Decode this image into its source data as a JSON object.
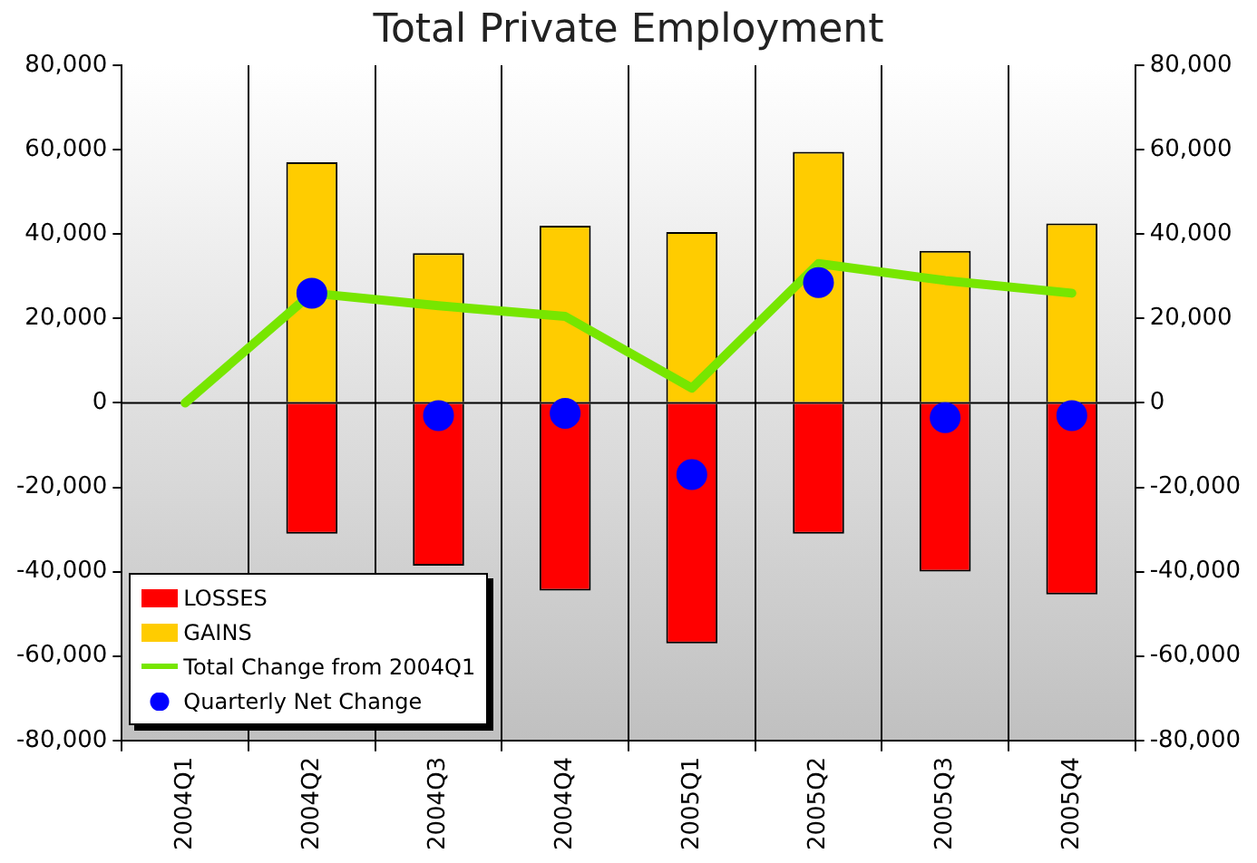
{
  "chart_data": {
    "type": "bar",
    "title": "Total Private Employment",
    "stacked": true,
    "categories": [
      "2004Q1",
      "2004Q2",
      "2004Q3",
      "2004Q4",
      "2005Q1",
      "2005Q2",
      "2005Q3",
      "2005Q4"
    ],
    "series": [
      {
        "name": "LOSSES",
        "color": "#ff0000",
        "values": [
          null,
          -31000,
          -38600,
          -44500,
          -57000,
          -31000,
          -40000,
          -45400
        ]
      },
      {
        "name": "GAINS",
        "color": "#ffcc00",
        "values": [
          null,
          57000,
          35500,
          42000,
          40500,
          59500,
          36000,
          42500
        ]
      },
      {
        "name": "Total Change from 2004Q1",
        "type": "line",
        "color": "#77e600",
        "values": [
          0,
          26000,
          23000,
          20500,
          3500,
          33000,
          29000,
          26000
        ]
      },
      {
        "name": "Quarterly Net Change",
        "type": "scatter",
        "color": "#0000ff",
        "marker": "circle",
        "x": [
          "2004Q2",
          "2004Q3",
          "2004Q4",
          "2005Q1",
          "2005Q2",
          "2005Q3",
          "2005Q4"
        ],
        "values": [
          26000,
          -3000,
          -2500,
          -17000,
          28500,
          -3500,
          -3000
        ]
      }
    ],
    "ylim": [
      -80000,
      80000
    ],
    "yticks": [
      {
        "value": -80000,
        "label": "-80,000"
      },
      {
        "value": -60000,
        "label": "-60,000"
      },
      {
        "value": -40000,
        "label": "-40,000"
      },
      {
        "value": -20000,
        "label": "-20,000"
      },
      0,
      {
        "value": 20000,
        "label": "20,000"
      },
      {
        "value": 40000,
        "label": "40,000"
      },
      {
        "value": 60000,
        "label": "60,000"
      },
      {
        "value": 80000,
        "label": "80,000"
      }
    ],
    "y2lim": [
      -80000,
      80000
    ],
    "y2ticks": [
      {
        "value": -80000,
        "label": "-80,000"
      },
      {
        "value": -60000,
        "label": "-60,000"
      },
      {
        "value": -40000,
        "label": "-40,000"
      },
      {
        "value": -20000,
        "label": "-20,000"
      },
      0,
      {
        "value": 20000,
        "label": "20,000"
      },
      {
        "value": 40000,
        "label": "40,000"
      },
      {
        "value": 60000,
        "label": "60,000"
      },
      {
        "value": 80000,
        "label": "80,000"
      }
    ],
    "ref_lines": [
      {
        "axis": "y",
        "value": 0,
        "color": "#000000"
      }
    ],
    "grid": "x",
    "legend": "bottom left"
  }
}
